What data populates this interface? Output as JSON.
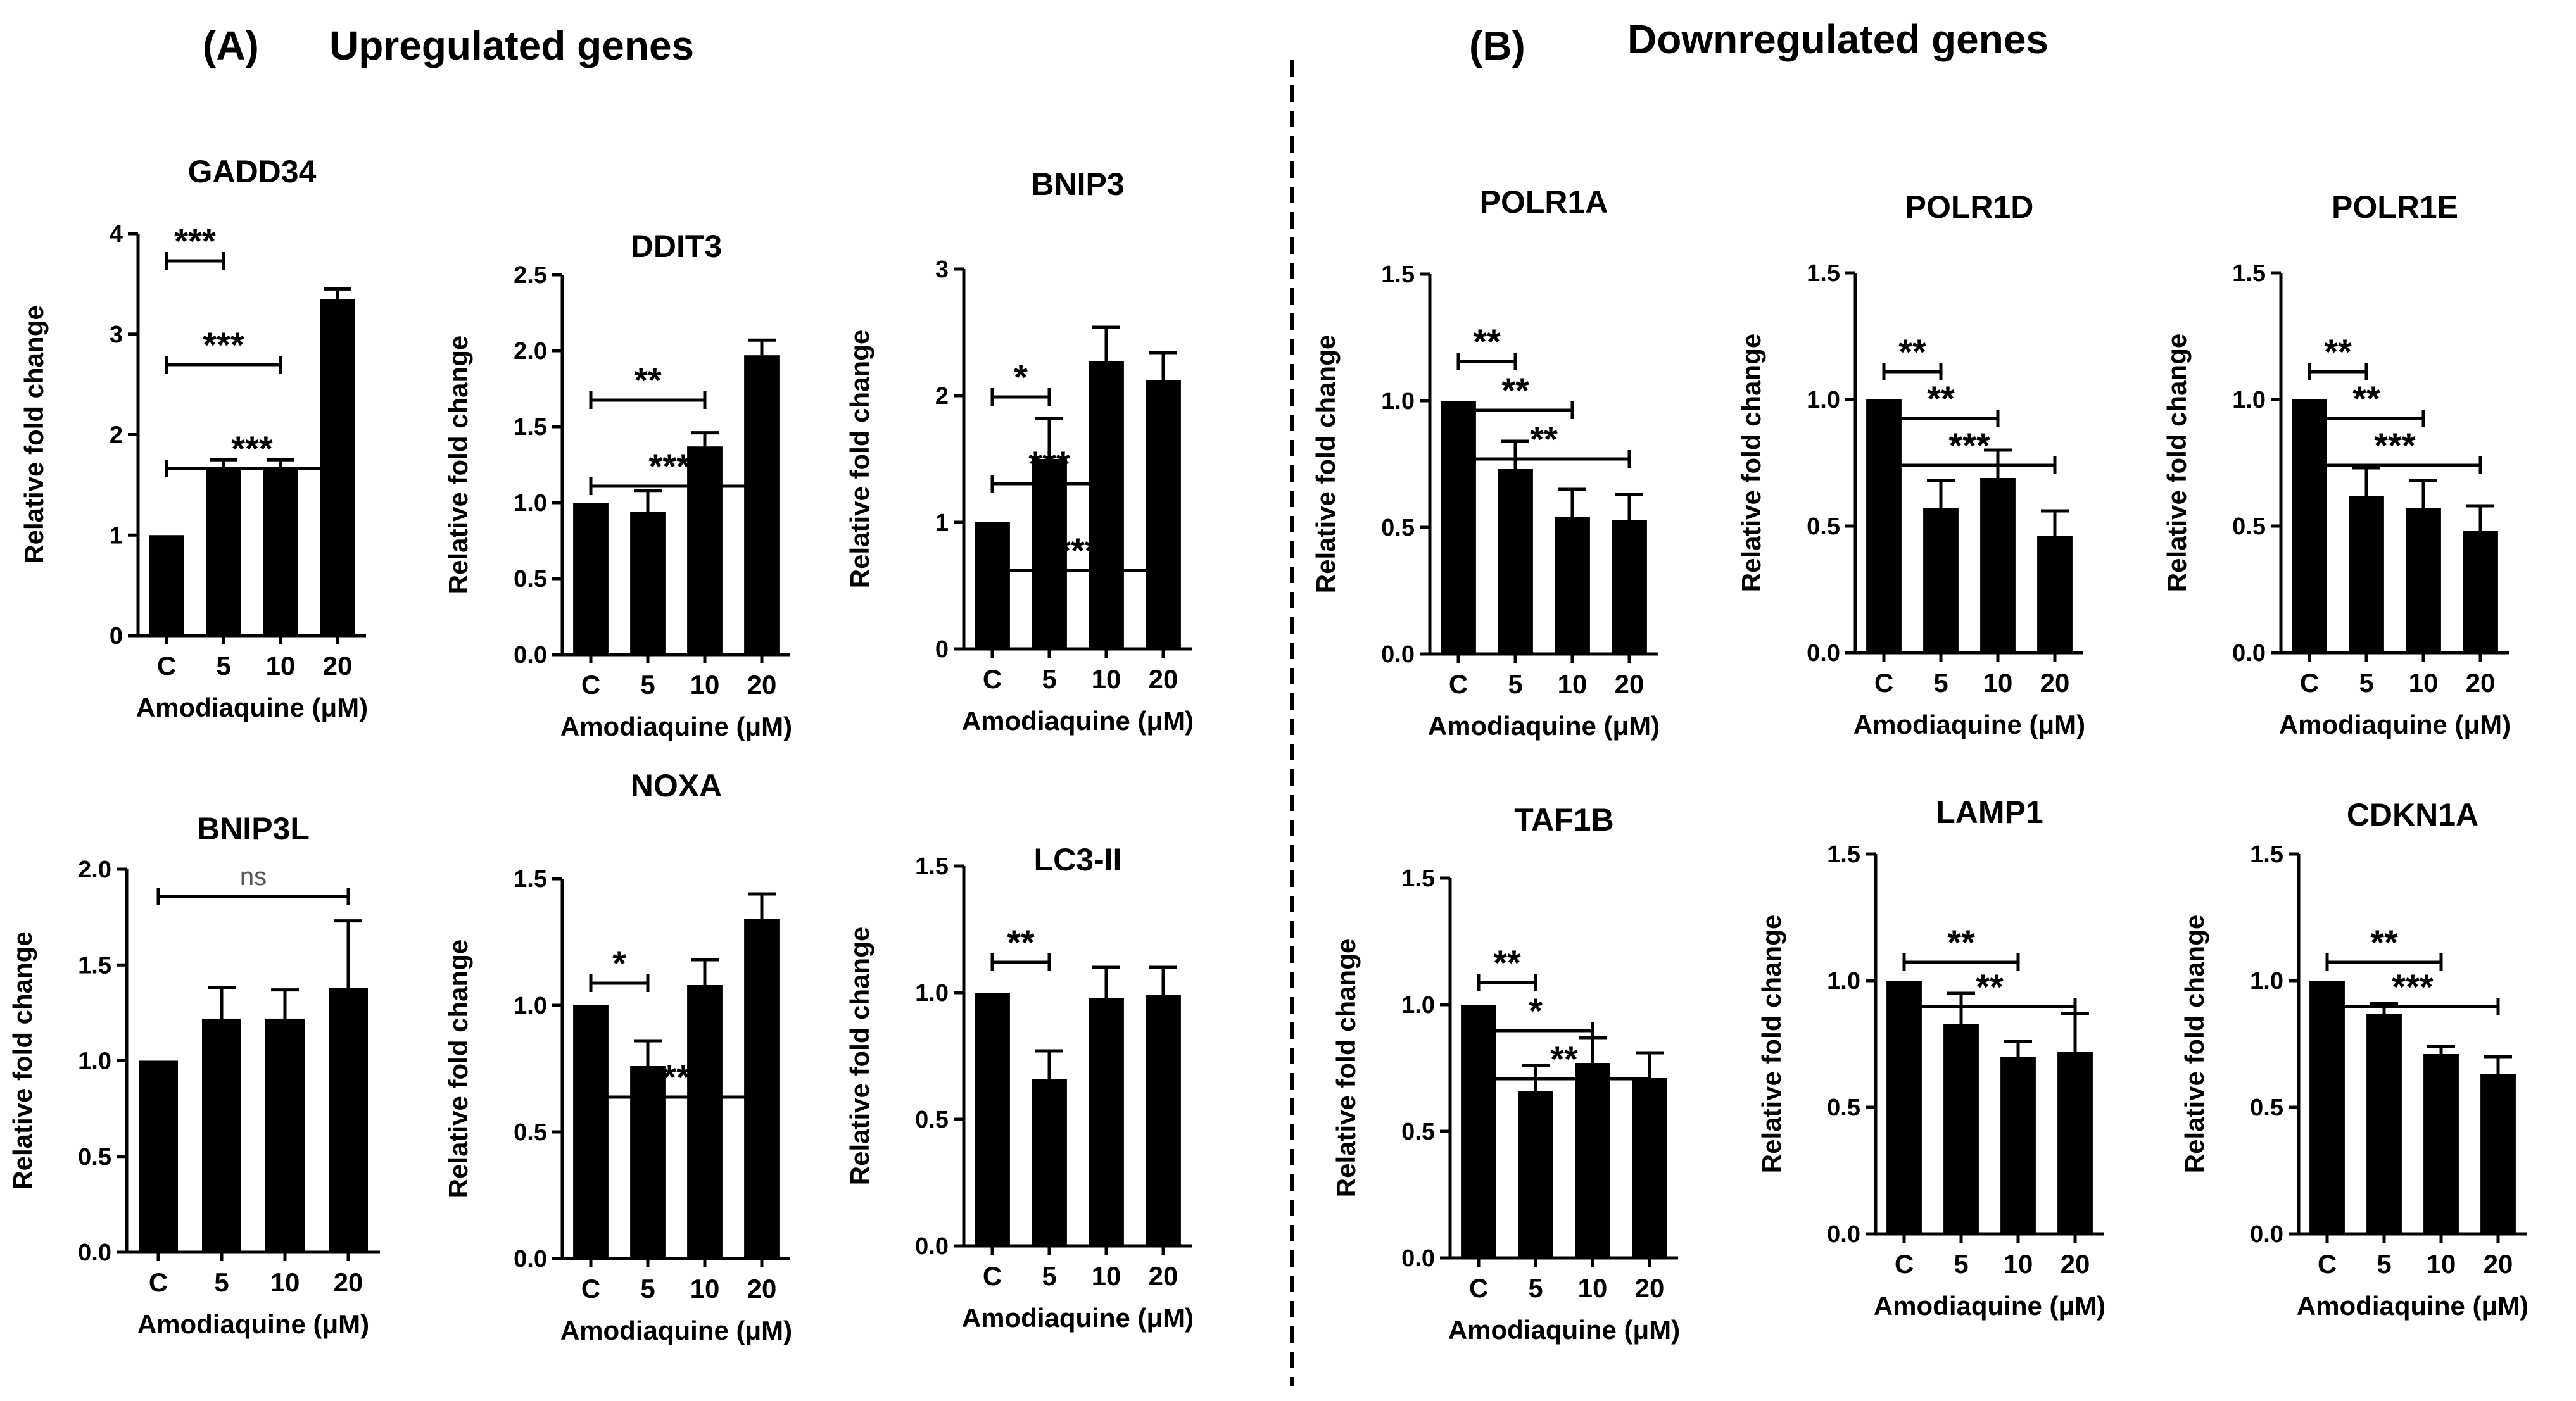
{
  "panels": {
    "A": {
      "label": "(A)",
      "title": "Upregulated genes"
    },
    "B": {
      "label": "(B)",
      "title": "Downregulated genes"
    }
  },
  "colors": {
    "bar": "#000000",
    "axis": "#000000",
    "divider": "#000000",
    "ns": "#555555"
  },
  "chart_data": [
    {
      "type": "bar",
      "title": "GADD34",
      "xlabel": "Amodiaquine (μM)",
      "ylabel": "Relative fold change",
      "categories": [
        "C",
        "5",
        "10",
        "20"
      ],
      "values": [
        1.0,
        1.65,
        1.65,
        3.35
      ],
      "errors": [
        0,
        0.1,
        0.1,
        0.1
      ],
      "ylim": [
        0,
        4
      ],
      "yticks": [
        0,
        1,
        2,
        3,
        4
      ],
      "ytick_labels": [
        "0",
        "1",
        "2",
        "3",
        "4"
      ],
      "significance": [
        {
          "from": 0,
          "to": 1,
          "label": "***"
        },
        {
          "from": 0,
          "to": 2,
          "label": "***"
        },
        {
          "from": 0,
          "to": 3,
          "label": "***"
        }
      ]
    },
    {
      "type": "bar",
      "title": "DDIT3",
      "xlabel": "Amodiaquine (μM)",
      "ylabel": "Relative fold change",
      "categories": [
        "C",
        "5",
        "10",
        "20"
      ],
      "values": [
        1.0,
        0.94,
        1.37,
        1.97
      ],
      "errors": [
        0,
        0.14,
        0.09,
        0.1
      ],
      "ylim": [
        0,
        2.5
      ],
      "yticks": [
        0,
        0.5,
        1.0,
        1.5,
        2.0,
        2.5
      ],
      "ytick_labels": [
        "0.0",
        "0.5",
        "1.0",
        "1.5",
        "2.0",
        "2.5"
      ],
      "significance": [
        {
          "from": 0,
          "to": 2,
          "label": "**"
        },
        {
          "from": 0,
          "to": 3,
          "label": "****"
        }
      ]
    },
    {
      "type": "bar",
      "title": "BNIP3",
      "xlabel": "Amodiaquine (μM)",
      "ylabel": "Relative fold change",
      "categories": [
        "C",
        "5",
        "10",
        "20"
      ],
      "values": [
        1.0,
        1.5,
        2.27,
        2.12
      ],
      "errors": [
        0,
        0.32,
        0.27,
        0.22
      ],
      "ylim": [
        0,
        3
      ],
      "yticks": [
        0,
        1,
        2,
        3
      ],
      "ytick_labels": [
        "0",
        "1",
        "2",
        "3"
      ],
      "significance": [
        {
          "from": 0,
          "to": 1,
          "label": "*"
        },
        {
          "from": 0,
          "to": 2,
          "label": "***"
        },
        {
          "from": 0,
          "to": 3,
          "label": "***"
        }
      ]
    },
    {
      "type": "bar",
      "title": "BNIP3L",
      "xlabel": "Amodiaquine (μM)",
      "ylabel": "Relative fold change",
      "categories": [
        "C",
        "5",
        "10",
        "20"
      ],
      "values": [
        1.0,
        1.22,
        1.22,
        1.38
      ],
      "errors": [
        0,
        0.16,
        0.15,
        0.35
      ],
      "ylim": [
        0,
        2.0
      ],
      "yticks": [
        0,
        0.5,
        1.0,
        1.5,
        2.0
      ],
      "ytick_labels": [
        "0.0",
        "0.5",
        "1.0",
        "1.5",
        "2.0"
      ],
      "significance": [
        {
          "from": 0,
          "to": 3,
          "label": "ns"
        }
      ]
    },
    {
      "type": "bar",
      "title": "NOXA",
      "xlabel": "Amodiaquine (μM)",
      "ylabel": "Relative fold change",
      "categories": [
        "C",
        "5",
        "10",
        "20"
      ],
      "values": [
        1.0,
        0.76,
        1.08,
        1.34
      ],
      "errors": [
        0,
        0.1,
        0.1,
        0.1
      ],
      "ylim": [
        0,
        1.5
      ],
      "yticks": [
        0,
        0.5,
        1.0,
        1.5
      ],
      "ytick_labels": [
        "0.0",
        "0.5",
        "1.0",
        "1.5"
      ],
      "significance": [
        {
          "from": 0,
          "to": 1,
          "label": "*"
        },
        {
          "from": 0,
          "to": 3,
          "label": "**"
        }
      ]
    },
    {
      "type": "bar",
      "title": "LC3-II",
      "xlabel": "Amodiaquine (μM)",
      "ylabel": "Relative fold change",
      "categories": [
        "C",
        "5",
        "10",
        "20"
      ],
      "values": [
        1.0,
        0.66,
        0.98,
        0.99
      ],
      "errors": [
        0,
        0.11,
        0.12,
        0.11
      ],
      "ylim": [
        0,
        1.5
      ],
      "yticks": [
        0,
        0.5,
        1.0,
        1.5
      ],
      "ytick_labels": [
        "0.0",
        "0.5",
        "1.0",
        "1.5"
      ],
      "significance": [
        {
          "from": 0,
          "to": 1,
          "label": "**"
        }
      ]
    },
    {
      "type": "bar",
      "title": "POLR1A",
      "xlabel": "Amodiaquine (μM)",
      "ylabel": "Relative fold change",
      "categories": [
        "C",
        "5",
        "10",
        "20"
      ],
      "values": [
        1.0,
        0.73,
        0.54,
        0.53
      ],
      "errors": [
        0,
        0.11,
        0.11,
        0.1
      ],
      "ylim": [
        0,
        1.5
      ],
      "yticks": [
        0,
        0.5,
        1.0,
        1.5
      ],
      "ytick_labels": [
        "0.0",
        "0.5",
        "1.0",
        "1.5"
      ],
      "significance": [
        {
          "from": 0,
          "to": 1,
          "label": "**"
        },
        {
          "from": 0,
          "to": 2,
          "label": "**"
        },
        {
          "from": 0,
          "to": 3,
          "label": "**"
        }
      ]
    },
    {
      "type": "bar",
      "title": "POLR1D",
      "xlabel": "Amodiaquine (μM)",
      "ylabel": "Relative fold change",
      "categories": [
        "C",
        "5",
        "10",
        "20"
      ],
      "values": [
        1.0,
        0.57,
        0.69,
        0.46
      ],
      "errors": [
        0,
        0.11,
        0.11,
        0.1
      ],
      "ylim": [
        0,
        1.5
      ],
      "yticks": [
        0,
        0.5,
        1.0,
        1.5
      ],
      "ytick_labels": [
        "0.0",
        "0.5",
        "1.0",
        "1.5"
      ],
      "significance": [
        {
          "from": 0,
          "to": 1,
          "label": "**"
        },
        {
          "from": 0,
          "to": 2,
          "label": "**"
        },
        {
          "from": 0,
          "to": 3,
          "label": "***"
        }
      ]
    },
    {
      "type": "bar",
      "title": "POLR1E",
      "xlabel": "Amodiaquine (μM)",
      "ylabel": "Relative fold change",
      "categories": [
        "C",
        "5",
        "10",
        "20"
      ],
      "values": [
        1.0,
        0.62,
        0.57,
        0.48
      ],
      "errors": [
        0,
        0.11,
        0.11,
        0.1
      ],
      "ylim": [
        0,
        1.5
      ],
      "yticks": [
        0,
        0.5,
        1.0,
        1.5
      ],
      "ytick_labels": [
        "0.0",
        "0.5",
        "1.0",
        "1.5"
      ],
      "significance": [
        {
          "from": 0,
          "to": 1,
          "label": "**"
        },
        {
          "from": 0,
          "to": 2,
          "label": "**"
        },
        {
          "from": 0,
          "to": 3,
          "label": "***"
        }
      ]
    },
    {
      "type": "bar",
      "title": "TAF1B",
      "xlabel": "Amodiaquine (μM)",
      "ylabel": "Relative fold change",
      "categories": [
        "C",
        "5",
        "10",
        "20"
      ],
      "values": [
        1.0,
        0.66,
        0.77,
        0.71
      ],
      "errors": [
        0,
        0.1,
        0.1,
        0.1
      ],
      "ylim": [
        0,
        1.5
      ],
      "yticks": [
        0,
        0.5,
        1.0,
        1.5
      ],
      "ytick_labels": [
        "0.0",
        "0.5",
        "1.0",
        "1.5"
      ],
      "significance": [
        {
          "from": 0,
          "to": 1,
          "label": "**"
        },
        {
          "from": 0,
          "to": 2,
          "label": "*"
        },
        {
          "from": 0,
          "to": 3,
          "label": "**"
        }
      ]
    },
    {
      "type": "bar",
      "title": "LAMP1",
      "xlabel": "Amodiaquine (μM)",
      "ylabel": "Relative fold change",
      "categories": [
        "C",
        "5",
        "10",
        "20"
      ],
      "values": [
        1.0,
        0.83,
        0.7,
        0.72
      ],
      "errors": [
        0,
        0.12,
        0.06,
        0.15
      ],
      "ylim": [
        0,
        1.5
      ],
      "yticks": [
        0,
        0.5,
        1.0,
        1.5
      ],
      "ytick_labels": [
        "0.0",
        "0.5",
        "1.0",
        "1.5"
      ],
      "significance": [
        {
          "from": 0,
          "to": 2,
          "label": "**"
        },
        {
          "from": 0,
          "to": 3,
          "label": "**"
        }
      ]
    },
    {
      "type": "bar",
      "title": "CDKN1A",
      "xlabel": "Amodiaquine (μM)",
      "ylabel": "Relative fold change",
      "categories": [
        "C",
        "5",
        "10",
        "20"
      ],
      "values": [
        1.0,
        0.87,
        0.71,
        0.63
      ],
      "errors": [
        0,
        0.04,
        0.03,
        0.07
      ],
      "ylim": [
        0,
        1.5
      ],
      "yticks": [
        0,
        0.5,
        1.0,
        1.5
      ],
      "ytick_labels": [
        "0.0",
        "0.5",
        "1.0",
        "1.5"
      ],
      "significance": [
        {
          "from": 0,
          "to": 2,
          "label": "**"
        },
        {
          "from": 0,
          "to": 3,
          "label": "***"
        }
      ]
    }
  ]
}
